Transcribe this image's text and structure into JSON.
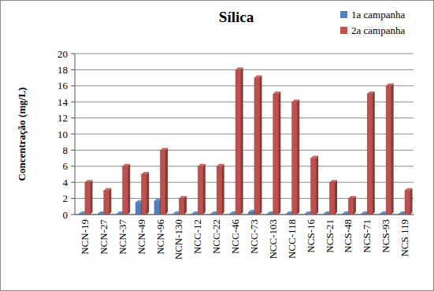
{
  "chart_data": {
    "type": "bar",
    "title": "Sílica",
    "y_label": "Concentração (mg/L)",
    "categories": [
      "NCN-19",
      "NCN-27",
      "NCN-37",
      "NCN-49",
      "NCN-96",
      "NCN-130",
      "NCC-12",
      "NCC-22",
      "NCC-46",
      "NCC-73",
      "NCC-103",
      "NCC-118",
      "NCS-16",
      "NCS-21",
      "NCS-48",
      "NCS-71",
      "NCS-93",
      "NCS 119"
    ],
    "series": [
      {
        "name": "1a campanha",
        "color": "#4f81bd",
        "values": [
          0.1,
          0.1,
          0.1,
          1.5,
          1.7,
          0.1,
          0.1,
          0.1,
          0.1,
          0.3,
          0.1,
          0.1,
          0.1,
          0.1,
          0.1,
          0.1,
          0.1,
          0.1
        ]
      },
      {
        "name": "2a campanha",
        "color": "#c0504d",
        "values": [
          4,
          3,
          6,
          5,
          8,
          2,
          6,
          6,
          18,
          17,
          15,
          14,
          7,
          4,
          2,
          15,
          16,
          3
        ]
      }
    ],
    "ylim": [
      0,
      20
    ],
    "yticks": [
      0,
      2,
      4,
      6,
      8,
      10,
      12,
      14,
      16,
      18,
      20
    ],
    "grid": true,
    "legend": "upper right"
  }
}
